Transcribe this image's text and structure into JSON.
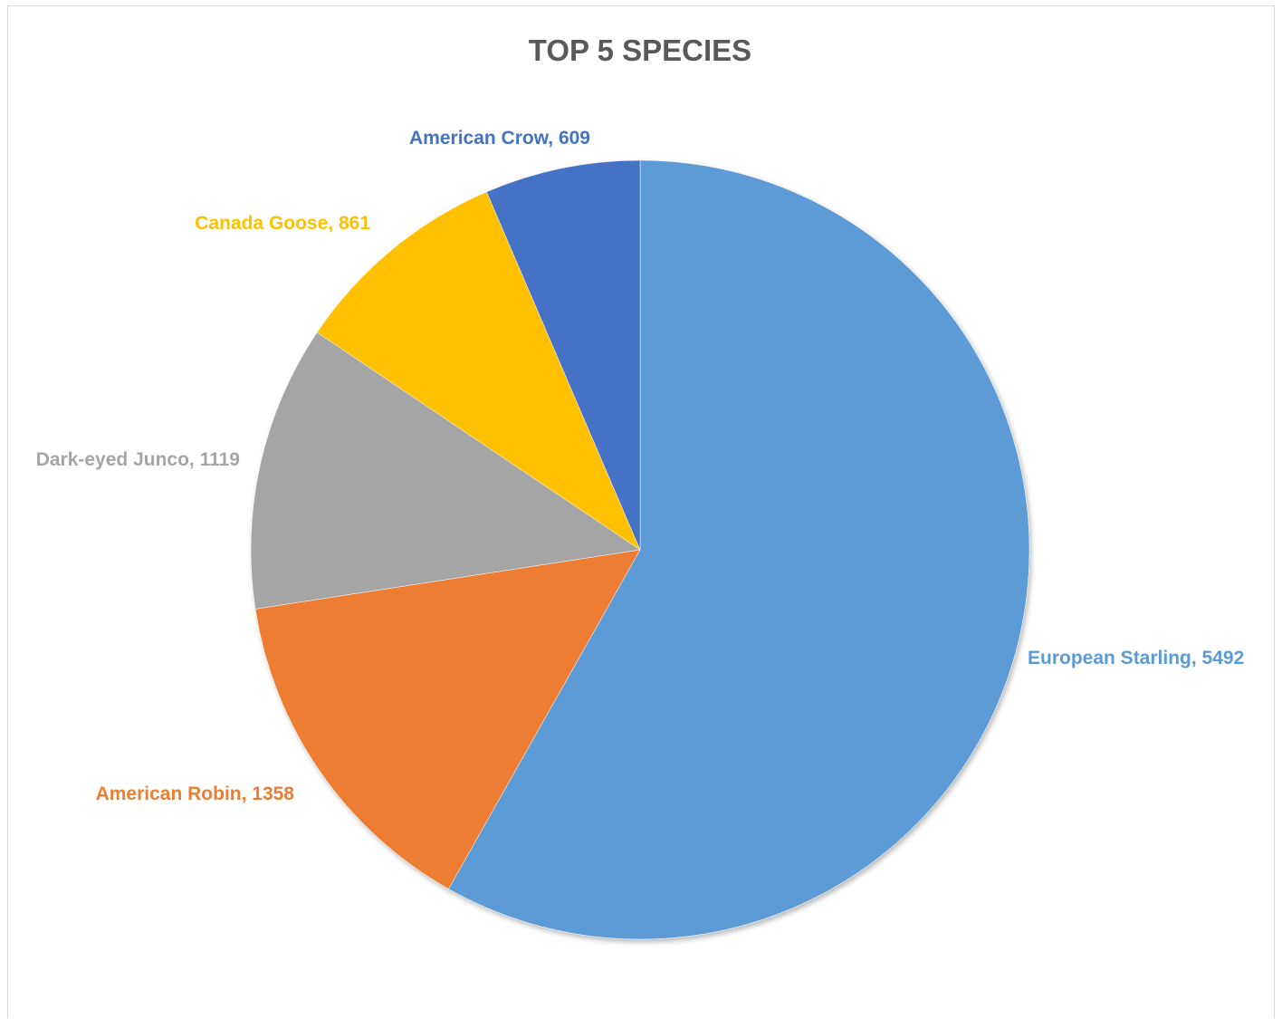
{
  "chart_data": {
    "type": "pie",
    "title": "TOP 5 SPECIES",
    "start_angle_deg": 0,
    "direction": "clockwise",
    "slices": [
      {
        "label": "European Starling",
        "value": 5492,
        "color": "#5B9BD5",
        "data_label": "European Starling, 5492"
      },
      {
        "label": "American Robin",
        "value": 1358,
        "color": "#ED7D31",
        "data_label": "American Robin, 1358"
      },
      {
        "label": "Dark-eyed Junco",
        "value": 1119,
        "color": "#A5A5A5",
        "data_label": "Dark-eyed Junco, 1119"
      },
      {
        "label": "Canada Goose",
        "value": 861,
        "color": "#FFC000",
        "data_label": "Canada Goose, 861"
      },
      {
        "label": "American Crow",
        "value": 609,
        "color": "#4472C4",
        "data_label": "American Crow, 609"
      }
    ],
    "legend": "none",
    "label_position": "outside-end"
  }
}
